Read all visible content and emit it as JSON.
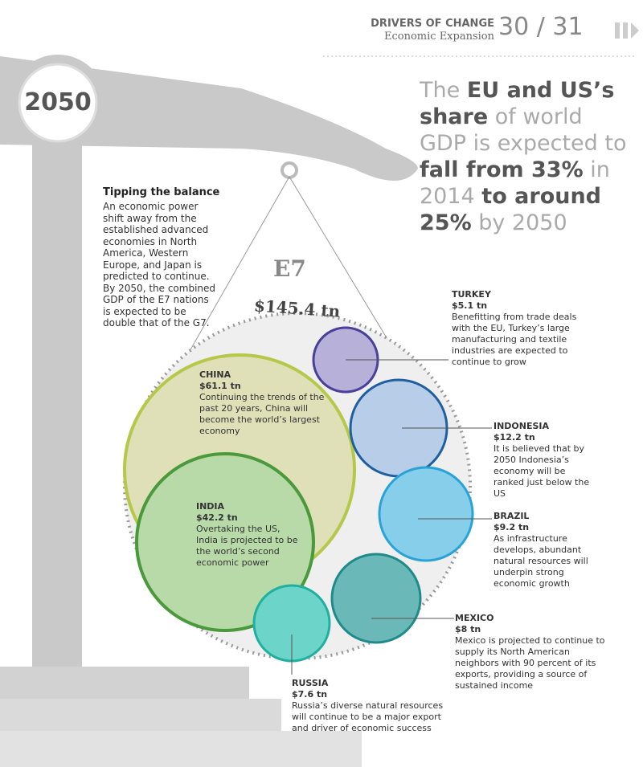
{
  "header": {
    "section": "DRIVERS OF CHANGE",
    "subtitle": "Economic Expansion",
    "pages": "30 / 31"
  },
  "year": "2050",
  "headline": [
    {
      "text": "The ",
      "bold": false
    },
    {
      "text": "EU and US’s share",
      "bold": true
    },
    {
      "text": " of world GDP is expected to ",
      "bold": false
    },
    {
      "text": "fall from 33%",
      "bold": true
    },
    {
      "text": " in 2014 ",
      "bold": false
    },
    {
      "text": "to around 25%",
      "bold": true
    },
    {
      "text": " by 2050",
      "bold": false
    }
  ],
  "sidebar": {
    "title": "Tipping the balance",
    "body": "An economic power shift away from the established advanced economies in North America, Western Europe, and Japan is predicted to continue. By 2050, the combined GDP of the E7 nations is expected to be double that of the G7."
  },
  "group": {
    "label": "E7",
    "total": "$145.4 tn"
  },
  "countries": [
    {
      "name": "TURKEY",
      "value": "$5.1 tn",
      "description": "Benefitting from trade deals with the EU, Turkey’s large manufacturing and textile industries are expected to continue to grow"
    },
    {
      "name": "CHINA",
      "value": "$61.1 tn",
      "description": "Continuing the trends of the past 20 years, China will become the world’s largest economy"
    },
    {
      "name": "INDONESIA",
      "value": "$12.2 tn",
      "description": "It is believed that by 2050 Indonesia’s economy will be ranked just below the US"
    },
    {
      "name": "INDIA",
      "value": "$42.2 tn",
      "description": "Overtaking the US, India is projected to be the world’s second economic power"
    },
    {
      "name": "BRAZIL",
      "value": "$9.2 tn",
      "description": "As infrastructure develops, abundant natural resources will underpin strong economic growth"
    },
    {
      "name": "MEXICO",
      "value": "$8 tn",
      "description": "Mexico is projected to continue to supply its North American neighbors with 90 percent of its exports, providing a source of sustained income"
    },
    {
      "name": "RUSSIA",
      "value": "$7.6 tn",
      "description": "Russia’s diverse natural resources will continue to be a major export and driver of economic success"
    }
  ]
}
